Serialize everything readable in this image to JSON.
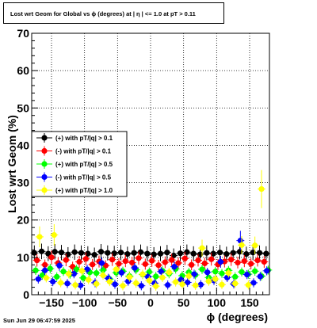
{
  "chart_data": {
    "type": "scatter",
    "title": "Lost wrt Geom for Global vs ϕ (degrees) at |  η  | <= 1.0 at pT > 0.11",
    "xlabel": "ϕ (degrees)",
    "ylabel": "Lost wrt Geom (%)",
    "xlim": [
      -180,
      180
    ],
    "ylim": [
      0,
      70
    ],
    "x_ticks": [
      -150,
      -100,
      -50,
      0,
      50,
      100,
      150
    ],
    "x_tick_labels": [
      "−150",
      "−100",
      "−50",
      "0",
      "50",
      "100",
      "150"
    ],
    "y_ticks": [
      0,
      10,
      20,
      30,
      40,
      50,
      60,
      70
    ],
    "y_tick_labels": [
      "0",
      "10",
      "20",
      "30",
      "40",
      "50",
      "60",
      "70"
    ],
    "grid": true,
    "legend_position": "middle-left",
    "series": [
      {
        "name": "(+) with pT/|q| > 0.1",
        "color": "#000000",
        "marker": "circle",
        "x": [
          -176,
          -165,
          -155,
          -145,
          -135,
          -125,
          -115,
          -105,
          -95,
          -85,
          -75,
          -65,
          -55,
          -45,
          -35,
          -25,
          -15,
          -5,
          5,
          15,
          25,
          35,
          45,
          55,
          65,
          75,
          85,
          95,
          105,
          115,
          125,
          135,
          145,
          155,
          165,
          175
        ],
        "y": [
          11.2,
          11.6,
          11.0,
          11.5,
          11.3,
          10.8,
          11.4,
          11.2,
          11.0,
          10.7,
          11.5,
          11.2,
          11.1,
          11.3,
          10.9,
          11.2,
          11.4,
          11.0,
          10.8,
          11.0,
          11.3,
          10.5,
          11.1,
          11.4,
          11.0,
          10.8,
          11.2,
          11.0,
          11.3,
          10.9,
          11.2,
          11.5,
          10.9,
          11.3,
          11.2,
          11.0
        ]
      },
      {
        "name": "(-) with pT/|q| > 0.1",
        "color": "#ff0000",
        "marker": "circle",
        "x": [
          -172,
          -160,
          -150,
          -140,
          -128,
          -118,
          -108,
          -98,
          -88,
          -78,
          -68,
          -58,
          -48,
          -38,
          -28,
          -18,
          -8,
          2,
          12,
          22,
          32,
          42,
          52,
          62,
          72,
          82,
          92,
          102,
          112,
          122,
          132,
          142,
          152,
          162,
          172
        ],
        "y": [
          9.2,
          8.0,
          10.0,
          8.5,
          9.3,
          7.5,
          8.8,
          9.6,
          8.1,
          8.9,
          7.8,
          9.4,
          8.3,
          9.0,
          8.6,
          9.8,
          8.2,
          9.1,
          7.9,
          8.7,
          9.3,
          8.5,
          9.7,
          8.0,
          9.2,
          8.4,
          9.5,
          8.1,
          8.9,
          9.4,
          8.6,
          9.0,
          8.3,
          9.2,
          8.8
        ]
      },
      {
        "name": "(+) with pT/|q| > 0.5",
        "color": "#00ff00",
        "marker": "circle",
        "x": [
          -174,
          -164,
          -152,
          -142,
          -132,
          -122,
          -112,
          -102,
          -92,
          -82,
          -72,
          -62,
          -52,
          -42,
          -32,
          -22,
          -12,
          -2,
          8,
          18,
          28,
          38,
          48,
          58,
          68,
          78,
          88,
          98,
          108,
          118,
          128,
          138,
          148,
          158,
          168,
          178
        ],
        "y": [
          6.5,
          5.2,
          7.0,
          4.8,
          6.2,
          5.5,
          6.8,
          4.5,
          6.0,
          5.8,
          6.6,
          4.2,
          5.9,
          6.3,
          5.0,
          6.7,
          5.4,
          6.1,
          4.9,
          6.4,
          5.6,
          6.9,
          5.1,
          6.0,
          5.3,
          6.8,
          4.6,
          6.2,
          5.7,
          6.5,
          4.8,
          6.1,
          5.5,
          6.3,
          5.0,
          6.6
        ]
      },
      {
        "name": "(-) with pT/|q| > 0.5",
        "color": "#0000ff",
        "marker": "circle",
        "x": [
          -170,
          -160,
          -148,
          -138,
          -126,
          -116,
          -106,
          -96,
          -84,
          -74,
          -64,
          -54,
          -44,
          -34,
          -24,
          -14,
          -4,
          6,
          16,
          26,
          36,
          46,
          56,
          66,
          76,
          86,
          96,
          106,
          116,
          126,
          136,
          146,
          156,
          166,
          176
        ],
        "y": [
          4.2,
          6.5,
          3.5,
          7.8,
          3.0,
          5.6,
          2.5,
          6.8,
          3.2,
          8.5,
          4.4,
          2.8,
          5.9,
          3.6,
          7.2,
          2.4,
          4.8,
          3.1,
          6.2,
          2.6,
          7.5,
          4.0,
          3.3,
          5.5,
          2.7,
          6.0,
          3.8,
          8.8,
          4.6,
          2.9,
          14.5,
          5.4,
          3.2,
          4.9,
          6.4
        ]
      },
      {
        "name": "(+) with pT/|q| > 1.0",
        "color": "#ffff00",
        "marker": "circle",
        "x": [
          -168,
          -158,
          -146,
          -136,
          -124,
          -114,
          -104,
          -94,
          -82,
          -72,
          -62,
          -52,
          -42,
          -32,
          -22,
          -12,
          -2,
          8,
          18,
          28,
          38,
          48,
          58,
          68,
          78,
          88,
          98,
          108,
          118,
          128,
          138,
          148,
          158,
          168
        ],
        "y": [
          15.5,
          4.5,
          16.0,
          3.2,
          5.6,
          2.6,
          6.4,
          4.0,
          2.9,
          5.2,
          3.5,
          6.8,
          2.4,
          4.7,
          3.1,
          5.5,
          3.8,
          2.3,
          4.6,
          6.0,
          3.4,
          2.8,
          5.0,
          2.5,
          12.5,
          3.6,
          4.2,
          2.7,
          5.8,
          3.0,
          13.3,
          2.6,
          13.2,
          28.3
        ]
      }
    ]
  },
  "footer": {
    "date": "Sun Jun 29 06:47:59 2025"
  }
}
